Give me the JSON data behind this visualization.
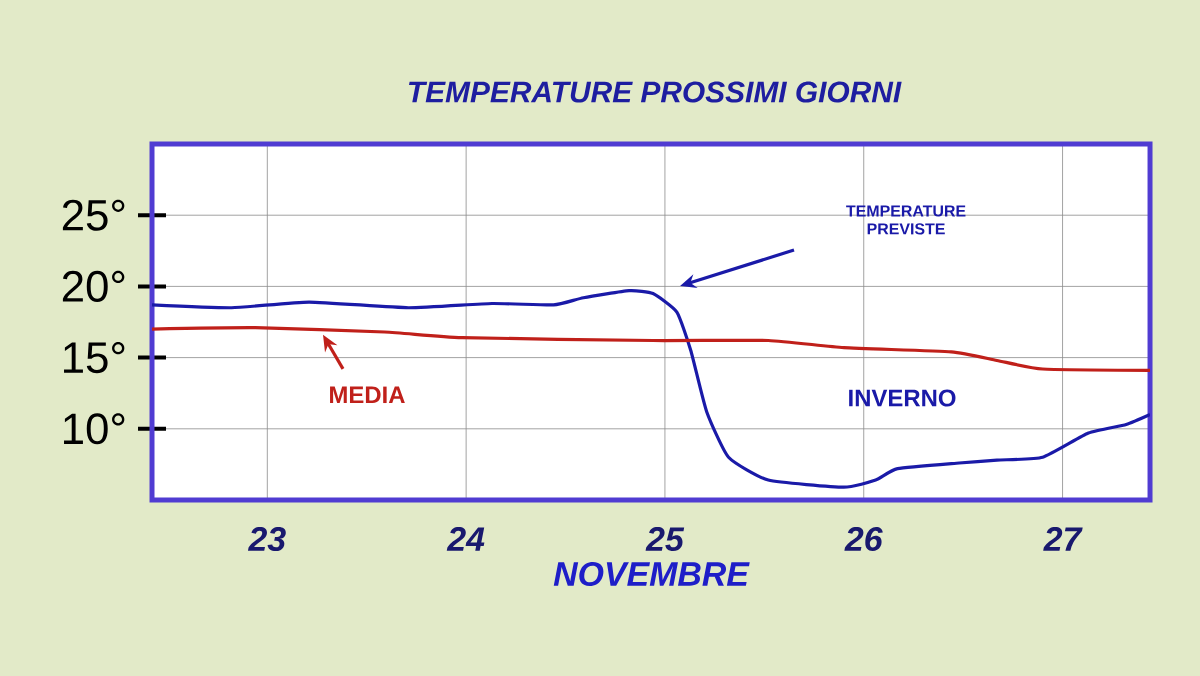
{
  "chart_data": {
    "type": "line",
    "title": "TEMPERATURE PROSSIMI GIORNI",
    "xlabel": "NOVEMBRE",
    "xlim": [
      22.42,
      27.44
    ],
    "xticks": [
      23,
      24,
      25,
      26,
      27
    ],
    "ylim": [
      5,
      30
    ],
    "yticks": [
      {
        "value": 10,
        "label": "10°"
      },
      {
        "value": 15,
        "label": "15°"
      },
      {
        "value": 20,
        "label": "20°"
      },
      {
        "value": 25,
        "label": "25°"
      }
    ],
    "grid": true,
    "marker": "none",
    "line_style": "solid",
    "series": [
      {
        "color": "#1a1aa8",
        "x": [
          22.42,
          22.82,
          23.21,
          23.71,
          24.13,
          24.44,
          24.59,
          24.82,
          24.94,
          25.06,
          25.13,
          25.21,
          25.32,
          25.52,
          25.9,
          26.06,
          26.17,
          26.48,
          26.67,
          26.9,
          27.13,
          27.32,
          27.44
        ],
        "values": [
          18.7,
          18.5,
          18.9,
          18.5,
          18.8,
          18.7,
          19.2,
          19.7,
          19.5,
          18.2,
          15.5,
          11.2,
          8.0,
          6.4,
          5.9,
          6.4,
          7.2,
          7.6,
          7.8,
          8.0,
          9.7,
          10.3,
          11.0
        ]
      },
      {
        "color": "#c0201a",
        "x": [
          22.42,
          22.94,
          23.59,
          23.98,
          24.94,
          25.52,
          25.9,
          26.44,
          26.67,
          26.9,
          27.44
        ],
        "values": [
          17.0,
          17.1,
          16.8,
          16.4,
          16.2,
          16.2,
          15.7,
          15.4,
          14.8,
          14.2,
          14.1
        ]
      }
    ],
    "annotations": [
      "TEMPERATURE PREVISTE",
      {
        "text": "MEDIA",
        "x": 23.28,
        "y": 16.6
      },
      "INVERNO"
    ]
  }
}
